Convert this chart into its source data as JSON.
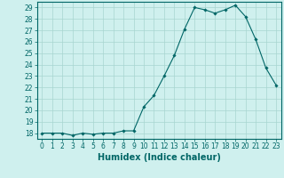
{
  "x": [
    0,
    1,
    2,
    3,
    4,
    5,
    6,
    7,
    8,
    9,
    10,
    11,
    12,
    13,
    14,
    15,
    16,
    17,
    18,
    19,
    20,
    21,
    22,
    23
  ],
  "y": [
    18,
    18,
    18,
    17.8,
    18,
    17.9,
    18,
    18,
    18.2,
    18.2,
    20.3,
    21.3,
    23.0,
    24.8,
    27.1,
    29.0,
    28.8,
    28.5,
    28.8,
    29.2,
    28.2,
    26.2,
    23.7,
    22.2
  ],
  "line_color": "#006666",
  "marker": "D",
  "marker_size": 1.8,
  "bg_color": "#cff0ee",
  "grid_color": "#a8d5d0",
  "xlabel": "Humidex (Indice chaleur)",
  "xlim": [
    -0.5,
    23.5
  ],
  "ylim": [
    17.5,
    29.5
  ],
  "yticks": [
    18,
    19,
    20,
    21,
    22,
    23,
    24,
    25,
    26,
    27,
    28,
    29
  ],
  "xticks": [
    0,
    1,
    2,
    3,
    4,
    5,
    6,
    7,
    8,
    9,
    10,
    11,
    12,
    13,
    14,
    15,
    16,
    17,
    18,
    19,
    20,
    21,
    22,
    23
  ],
  "tick_color": "#006666",
  "xlabel_fontsize": 7,
  "tick_fontsize": 5.5,
  "linewidth": 0.8
}
